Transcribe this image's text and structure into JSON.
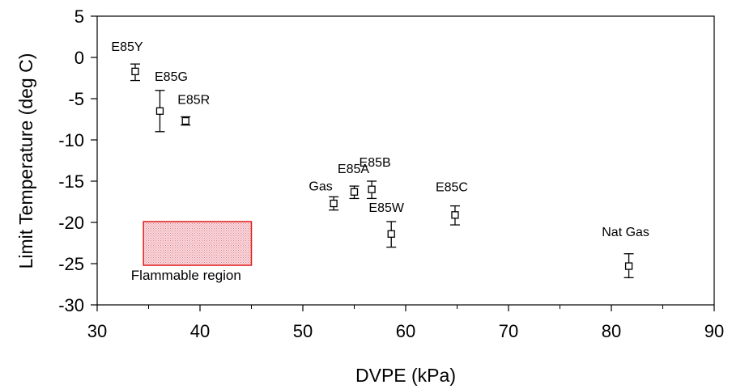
{
  "chart_data": {
    "type": "scatter",
    "title": "",
    "xlabel": "DVPE (kPa)",
    "ylabel": "Limit Temperature (deg C)",
    "xlim": [
      30,
      90
    ],
    "ylim": [
      -30,
      5
    ],
    "xticks": [
      30,
      40,
      50,
      60,
      70,
      80,
      90
    ],
    "yticks": [
      5,
      0,
      -5,
      -10,
      -15,
      -20,
      -25,
      -30
    ],
    "grid": false,
    "points": [
      {
        "label": "E85Y",
        "x": 33.7,
        "y": -1.7,
        "err_low": -2.8,
        "err_high": -0.8
      },
      {
        "label": "E85G",
        "x": 36.1,
        "y": -6.5,
        "err_low": -9.0,
        "err_high": -4.0
      },
      {
        "label": "E85R",
        "x": 38.6,
        "y": -7.7,
        "err_low": -8.2,
        "err_high": -7.2
      },
      {
        "label": "Gas",
        "x": 53.0,
        "y": -17.7,
        "err_low": -18.5,
        "err_high": -16.9
      },
      {
        "label": "E85A",
        "x": 55.0,
        "y": -16.3,
        "err_low": -17.1,
        "err_high": -15.6
      },
      {
        "label": "E85B",
        "x": 56.7,
        "y": -16.0,
        "err_low": -17.1,
        "err_high": -15.0
      },
      {
        "label": "E85W",
        "x": 58.6,
        "y": -21.4,
        "err_low": -23.0,
        "err_high": -19.9
      },
      {
        "label": "E85C",
        "x": 64.8,
        "y": -19.1,
        "err_low": -20.3,
        "err_high": -18.0
      },
      {
        "label": "Nat Gas",
        "x": 81.7,
        "y": -25.3,
        "err_low": -26.7,
        "err_high": -23.8
      }
    ],
    "region": {
      "label": "Flammable region",
      "x": [
        34.5,
        45.0
      ],
      "y": [
        -25.2,
        -19.9
      ],
      "fill_color": "#f4c7cc",
      "edge_color": "#e02020"
    }
  }
}
